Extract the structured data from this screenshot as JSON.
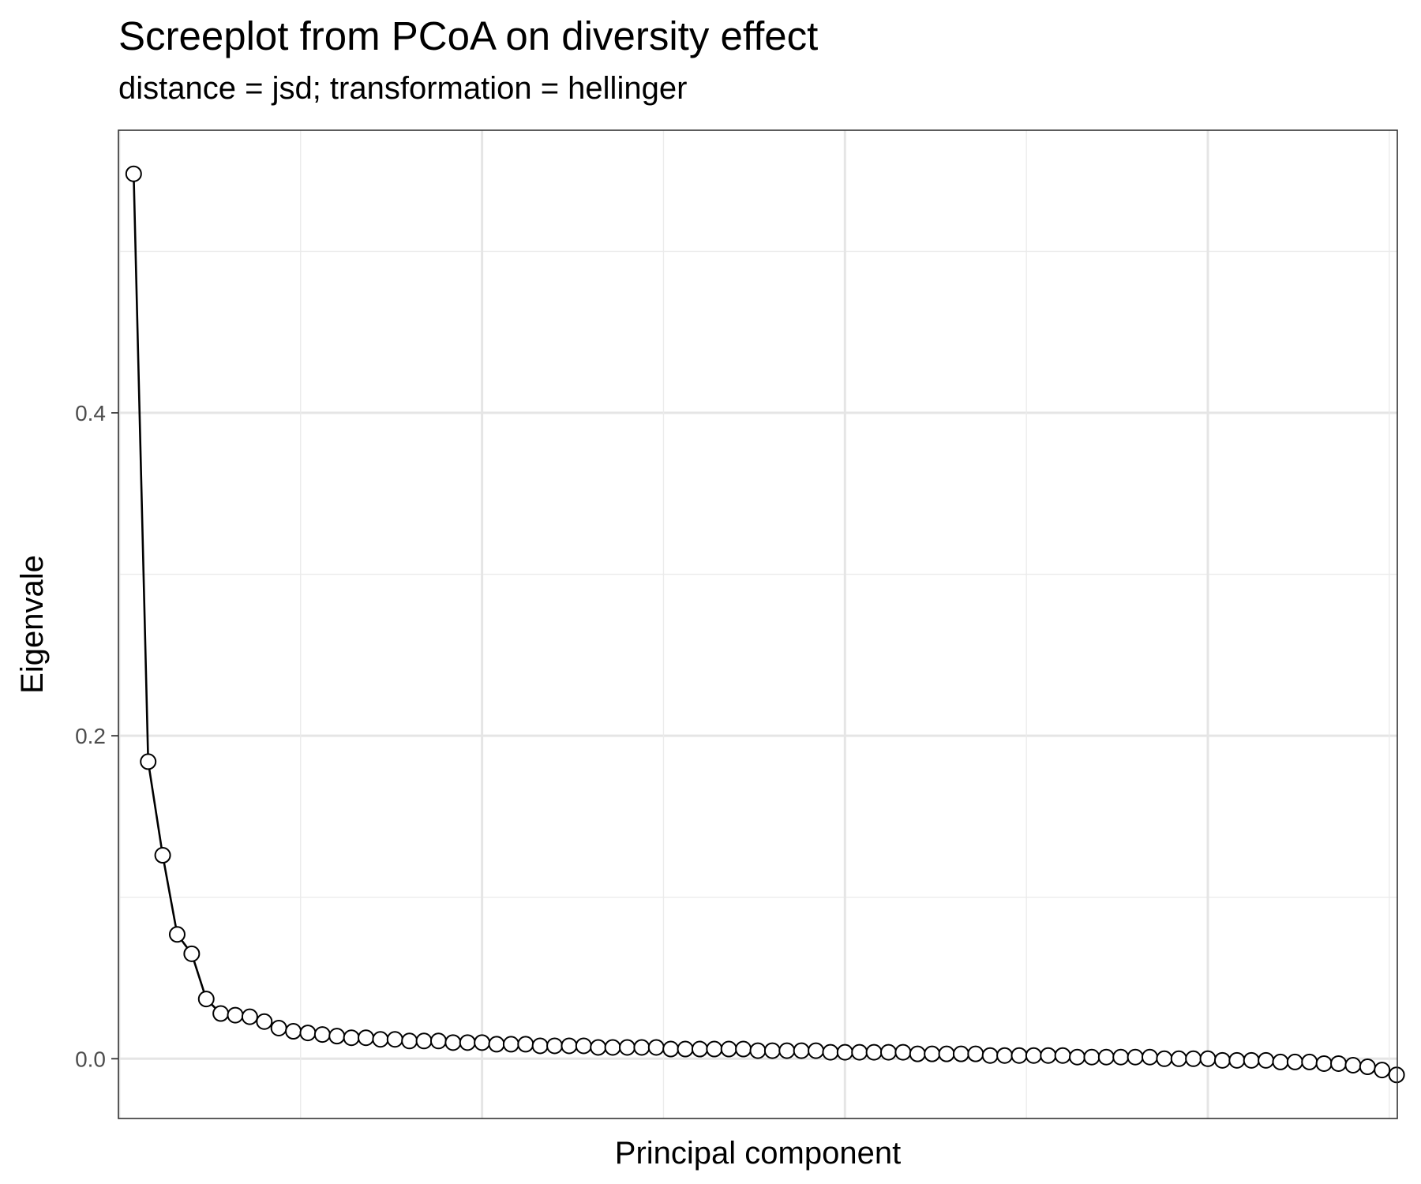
{
  "chart_data": {
    "type": "line",
    "title": "Screeplot from PCoA on diversity effect",
    "subtitle": "distance = jsd; transformation = hellinger",
    "xlabel": "Principal component",
    "ylabel": "Eigenvale",
    "x_ticks_labeled": false,
    "xlim": [
      -0.05,
      88.05
    ],
    "ylim": [
      -0.037,
      0.575
    ],
    "y_ticks": [
      0.0,
      0.2,
      0.4
    ],
    "y_tick_labels": [
      "0.0",
      "0.2",
      "0.4"
    ],
    "x_gridlines": [
      12.5,
      25,
      37.5,
      50,
      62.5,
      75
    ],
    "grid": true,
    "marker": "open-circle",
    "x": [
      1,
      2,
      3,
      4,
      5,
      6,
      7,
      8,
      9,
      10,
      11,
      12,
      13,
      14,
      15,
      16,
      17,
      18,
      19,
      20,
      21,
      22,
      23,
      24,
      25,
      26,
      27,
      28,
      29,
      30,
      31,
      32,
      33,
      34,
      35,
      36,
      37,
      38,
      39,
      40,
      41,
      42,
      43,
      44,
      45,
      46,
      47,
      48,
      49,
      50,
      51,
      52,
      53,
      54,
      55,
      56,
      57,
      58,
      59,
      60,
      61,
      62,
      63,
      64,
      65,
      66,
      67,
      68,
      69,
      70,
      71,
      72,
      73,
      74,
      75,
      76,
      77,
      78,
      79,
      80,
      81,
      82,
      83,
      84,
      85,
      86,
      87,
      88
    ],
    "values": [
      0.548,
      0.184,
      0.126,
      0.077,
      0.065,
      0.037,
      0.028,
      0.027,
      0.026,
      0.023,
      0.019,
      0.017,
      0.016,
      0.015,
      0.014,
      0.013,
      0.013,
      0.012,
      0.012,
      0.011,
      0.011,
      0.011,
      0.01,
      0.01,
      0.01,
      0.009,
      0.009,
      0.009,
      0.008,
      0.008,
      0.008,
      0.008,
      0.007,
      0.007,
      0.007,
      0.007,
      0.007,
      0.006,
      0.006,
      0.006,
      0.006,
      0.006,
      0.006,
      0.005,
      0.005,
      0.005,
      0.005,
      0.005,
      0.004,
      0.004,
      0.004,
      0.004,
      0.004,
      0.004,
      0.003,
      0.003,
      0.003,
      0.003,
      0.003,
      0.002,
      0.002,
      0.002,
      0.002,
      0.002,
      0.002,
      0.001,
      0.001,
      0.001,
      0.001,
      0.001,
      0.001,
      0.0,
      0.0,
      0.0,
      0.0,
      -0.001,
      -0.001,
      -0.001,
      -0.001,
      -0.002,
      -0.002,
      -0.002,
      -0.003,
      -0.003,
      -0.004,
      -0.005,
      -0.007,
      -0.01
    ]
  }
}
